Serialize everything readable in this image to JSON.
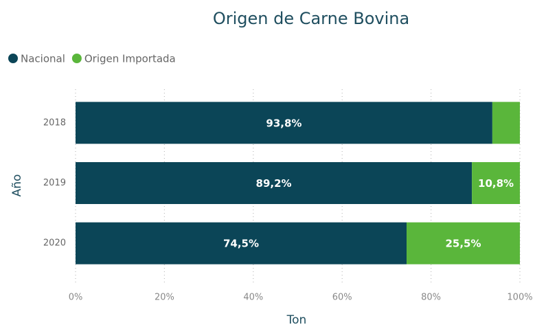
{
  "chart_data": {
    "type": "bar",
    "orientation": "horizontal",
    "stacked": true,
    "title": "Origen de Carne Bovina",
    "x_label": "Ton",
    "y_label": "Año",
    "categories": [
      "2018",
      "2019",
      "2020"
    ],
    "series": [
      {
        "name": "Nacional",
        "color": "#0b4557",
        "values": [
          93.8,
          89.2,
          74.5
        ],
        "value_labels": [
          "93,8%",
          "89,2%",
          "74,5%"
        ]
      },
      {
        "name": "Origen Importada",
        "color": "#5ab63b",
        "values": [
          6.2,
          10.8,
          25.5
        ],
        "value_labels": [
          null,
          "10,8%",
          "25,5%"
        ]
      }
    ],
    "xlim": [
      0,
      100
    ],
    "xticks": [
      {
        "value": 0,
        "label": "0%"
      },
      {
        "value": 20,
        "label": "20%"
      },
      {
        "value": 40,
        "label": "40%"
      },
      {
        "value": 60,
        "label": "60%"
      },
      {
        "value": 80,
        "label": "80%"
      },
      {
        "value": 100,
        "label": "100%"
      }
    ],
    "grid": true,
    "legend": "top-left"
  }
}
